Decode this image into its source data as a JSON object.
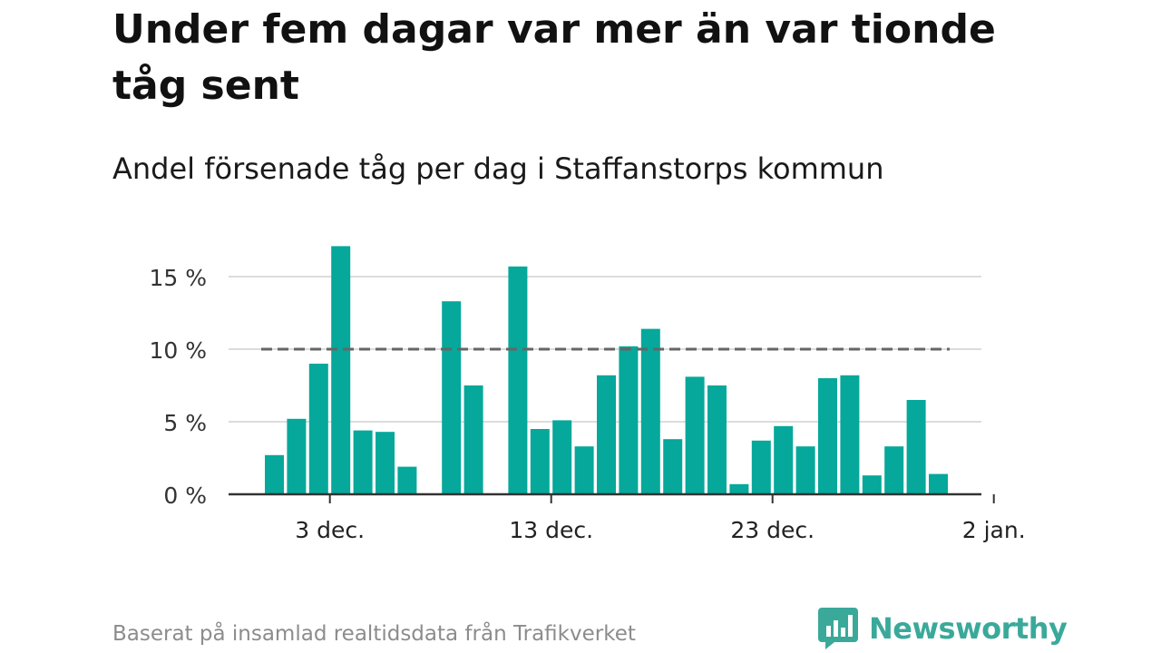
{
  "title": "Under fem dagar var mer än var tionde tåg sent",
  "subtitle": "Andel försenade tåg per dag i Staffanstorps kommun",
  "footer": "Baserat på insamlad realtidsdata från Trafikverket",
  "brand": {
    "name": "Newsworthy",
    "color": "#3aa99a"
  },
  "chart_data": {
    "type": "bar",
    "x_start": "2023-11-30",
    "categories": [
      "30 nov.",
      "1 dec.",
      "2 dec.",
      "3 dec.",
      "4 dec.",
      "5 dec.",
      "6 dec.",
      "7 dec.",
      "8 dec.",
      "9 dec.",
      "10 dec.",
      "11 dec.",
      "12 dec.",
      "13 dec.",
      "14 dec.",
      "15 dec.",
      "16 dec.",
      "17 dec.",
      "18 dec.",
      "19 dec.",
      "20 dec.",
      "21 dec.",
      "22 dec.",
      "23 dec.",
      "24 dec.",
      "25 dec.",
      "26 dec.",
      "27 dec.",
      "28 dec.",
      "29 dec.",
      "30 dec.",
      "31 dec.",
      "1 jan."
    ],
    "values": [
      2.7,
      5.2,
      9.0,
      17.1,
      4.4,
      4.3,
      1.9,
      null,
      13.3,
      7.5,
      null,
      15.7,
      4.5,
      5.1,
      3.3,
      8.2,
      10.2,
      11.4,
      3.8,
      8.1,
      7.5,
      0.7,
      3.7,
      4.7,
      3.3,
      8.0,
      8.2,
      1.3,
      3.3,
      6.5,
      1.4,
      null,
      null
    ],
    "reference_line": {
      "value": 10,
      "style": "dashed"
    },
    "ylim": [
      0,
      17.5
    ],
    "yticks": [
      0,
      5,
      10,
      15
    ],
    "ytick_labels": [
      "0 %",
      "5 %",
      "10 %",
      "15 %"
    ],
    "xticks": [
      "3 dec.",
      "13 dec.",
      "23 dec.",
      "2 jan."
    ],
    "grid": true,
    "legend": "none",
    "colors": {
      "bar": "#05a89a",
      "grid": "#dcdcdc",
      "axis": "#333333",
      "reference": "#666666"
    }
  }
}
